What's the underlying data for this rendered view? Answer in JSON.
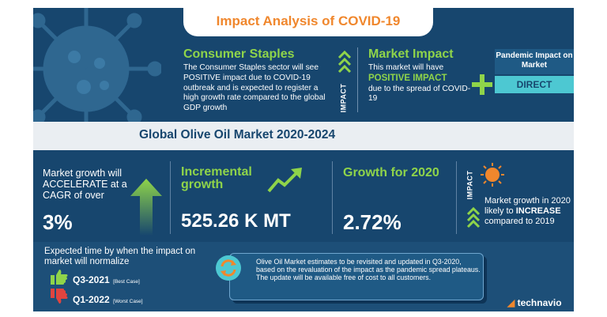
{
  "title": "Impact Analysis of COVID-19",
  "consumer_staples": {
    "heading": "Consumer Staples",
    "text": "The Consumer Staples sector will see POSITIVE impact due to COVID-19 outbreak and is expected to register a high growth rate compared to the global GDP growth"
  },
  "impact_label": "IMPACT",
  "market_impact": {
    "heading": "Market Impact",
    "line1": "This market will have",
    "highlight": "POSITIVE IMPACT",
    "line2": "due to the spread of COVID-19"
  },
  "pandemic_impact": {
    "label": "Pandemic Impact on Market",
    "value": "DIRECT"
  },
  "market_title": "Global Olive Oil Market 2020-2024",
  "growth": {
    "label": "Market growth will ACCELERATE at a CAGR of over",
    "value": "3%"
  },
  "incremental": {
    "label": "Incremental growth",
    "value": "525.26 K MT"
  },
  "growth_2020": {
    "label": "Growth for 2020",
    "value": "2.72%"
  },
  "market_growth_note": {
    "line1": "Market growth in 2020 likely to",
    "emph": "INCREASE",
    "line2": "compared to 2019"
  },
  "expected_time": {
    "label": "Expected time by when the impact on market will normalize",
    "best": {
      "quarter": "Q3-2021",
      "tag": "[Best Case]"
    },
    "worst": {
      "quarter": "Q1-2022",
      "tag": "[Worst Case]"
    }
  },
  "note": "Olive Oil Market estimates to be revisited and updated in Q3-2020, based on the revaluation of the impact as the pandemic spread plateaus. The update will be available free of cost to all customers.",
  "brand": "technavio",
  "colors": {
    "navy": "#17466e",
    "green": "#8fd44a",
    "orange": "#f0872d",
    "teal": "#4dc8d2"
  }
}
